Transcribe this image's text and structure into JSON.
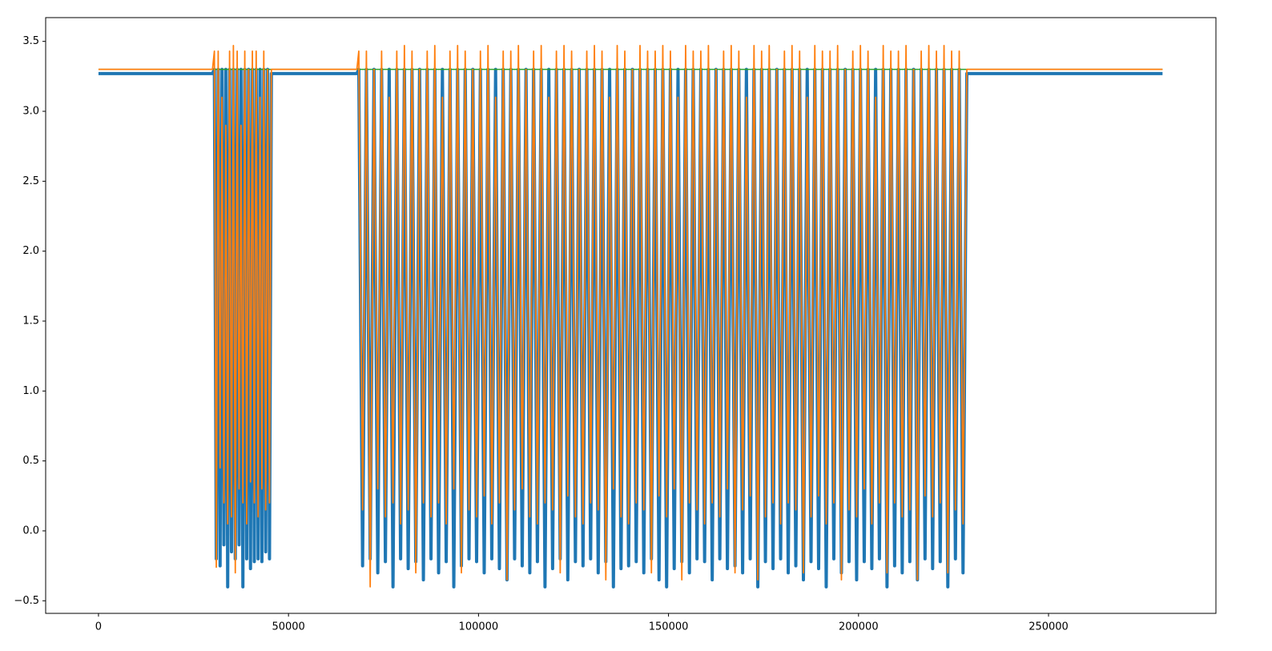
{
  "chart_data": {
    "type": "line",
    "xlim": [
      -13900,
      294050
    ],
    "ylim": [
      -0.59,
      3.67
    ],
    "xticks": [
      0,
      50000,
      100000,
      150000,
      200000,
      250000
    ],
    "yticks": [
      {
        "value": -0.5,
        "label": "−0.5"
      },
      {
        "value": 0,
        "label": "0.0"
      },
      0.5,
      {
        "value": 1,
        "label": "1.0"
      },
      1.5,
      {
        "value": 2,
        "label": "2.0"
      },
      2.5,
      {
        "value": 3,
        "label": "3.0"
      },
      3.5
    ],
    "x": [
      0,
      30000,
      30500,
      31000,
      31500,
      32000,
      32500,
      33000,
      33500,
      34000,
      34500,
      35000,
      35500,
      36000,
      36500,
      37000,
      37500,
      38000,
      38500,
      39000,
      39500,
      40000,
      40500,
      41000,
      41500,
      42000,
      42500,
      43000,
      43500,
      44000,
      44500,
      45000,
      45500,
      68000,
      68500,
      69500,
      70500,
      71500,
      72500,
      73500,
      74500,
      75500,
      76500,
      77500,
      78500,
      79500,
      80500,
      81500,
      82500,
      83500,
      84500,
      85500,
      86500,
      87500,
      88500,
      89500,
      90500,
      91500,
      92500,
      93500,
      94500,
      95500,
      96500,
      97500,
      98500,
      99500,
      100500,
      101500,
      102500,
      103500,
      104500,
      105500,
      106500,
      107500,
      108500,
      109500,
      110500,
      111500,
      112500,
      113500,
      114500,
      115500,
      116500,
      117500,
      118500,
      119500,
      120500,
      121500,
      122500,
      123500,
      124500,
      125500,
      126500,
      127500,
      128500,
      129500,
      130500,
      131500,
      132500,
      133500,
      134500,
      135500,
      136500,
      137500,
      138500,
      139500,
      140500,
      141500,
      142500,
      143500,
      144500,
      145500,
      146500,
      147500,
      148500,
      149500,
      150500,
      151500,
      152500,
      153500,
      154500,
      155500,
      156500,
      157500,
      158500,
      159500,
      160500,
      161500,
      162500,
      163500,
      164500,
      165500,
      166500,
      167500,
      168500,
      169500,
      170500,
      171500,
      172500,
      173500,
      174500,
      175500,
      176500,
      177500,
      178500,
      179500,
      180500,
      181500,
      182500,
      183500,
      184500,
      185500,
      186500,
      187500,
      188500,
      189500,
      190500,
      191500,
      192500,
      193500,
      194500,
      195500,
      196500,
      197500,
      198500,
      199500,
      200500,
      201500,
      202500,
      203500,
      204500,
      205500,
      206500,
      207500,
      208500,
      209500,
      210500,
      211500,
      212500,
      213500,
      214500,
      215500,
      216500,
      217500,
      218500,
      219500,
      220500,
      221500,
      222500,
      223500,
      224500,
      225500,
      226500,
      227500,
      228500,
      280000
    ],
    "series": [
      {
        "color": "#1f77b4",
        "values": [
          3.27,
          3.27,
          3.3,
          -0.2,
          3.3,
          -0.25,
          3.3,
          -0.1,
          3.3,
          -0.4,
          3.3,
          -0.15,
          3.3,
          -0.2,
          3.3,
          -0.1,
          3.3,
          -0.4,
          3.3,
          -0.2,
          3.3,
          -0.27,
          3.3,
          -0.22,
          3.3,
          -0.2,
          3.3,
          -0.22,
          3.3,
          -0.15,
          3.3,
          -0.2,
          3.27,
          3.27,
          3.3,
          -0.25,
          3.3,
          -0.2,
          3.3,
          -0.3,
          3.3,
          -0.22,
          3.3,
          -0.4,
          3.3,
          -0.2,
          3.3,
          -0.27,
          3.3,
          -0.22,
          3.3,
          -0.35,
          3.3,
          -0.2,
          3.3,
          -0.3,
          3.3,
          -0.22,
          3.3,
          -0.4,
          3.3,
          -0.25,
          3.3,
          -0.2,
          3.3,
          -0.22,
          3.3,
          -0.3,
          3.3,
          -0.2,
          3.3,
          -0.27,
          3.3,
          -0.35,
          3.3,
          -0.2,
          3.3,
          -0.25,
          3.3,
          -0.3,
          3.3,
          -0.22,
          3.3,
          -0.4,
          3.3,
          -0.27,
          3.3,
          -0.2,
          3.3,
          -0.35,
          3.3,
          -0.22,
          3.3,
          -0.25,
          3.3,
          -0.2,
          3.3,
          -0.3,
          3.3,
          -0.22,
          3.3,
          -0.4,
          3.3,
          -0.27,
          3.3,
          -0.25,
          3.3,
          -0.22,
          3.3,
          -0.3,
          3.3,
          -0.2,
          3.3,
          -0.35,
          3.3,
          -0.4,
          3.3,
          -0.27,
          3.3,
          -0.22,
          3.3,
          -0.3,
          3.3,
          -0.2,
          3.3,
          -0.22,
          3.3,
          -0.35,
          3.3,
          -0.2,
          3.3,
          -0.27,
          3.3,
          -0.25,
          3.3,
          -0.3,
          3.3,
          -0.2,
          3.3,
          -0.4,
          3.3,
          -0.22,
          3.3,
          -0.27,
          3.3,
          -0.2,
          3.3,
          -0.3,
          3.3,
          -0.25,
          3.3,
          -0.35,
          3.3,
          -0.22,
          3.3,
          -0.27,
          3.3,
          -0.4,
          3.3,
          -0.2,
          3.3,
          -0.3,
          3.3,
          -0.22,
          3.3,
          -0.35,
          3.3,
          -0.22,
          3.3,
          -0.27,
          3.3,
          -0.2,
          3.3,
          -0.4,
          3.3,
          -0.25,
          3.3,
          -0.3,
          3.3,
          -0.22,
          3.3,
          -0.35,
          3.3,
          -0.2,
          3.3,
          -0.27,
          3.3,
          -0.22,
          3.3,
          -0.4,
          3.3,
          -0.2,
          3.3,
          -0.3,
          3.27,
          3.27
        ]
      },
      {
        "color": "#2ca02c",
        "x": [
          0,
          280000
        ],
        "values": [
          3.3,
          3.3
        ]
      },
      {
        "color": "#ff7f0e",
        "values": [
          3.3,
          3.3,
          3.43,
          -0.26,
          3.43,
          0.45,
          3.1,
          0.2,
          2.9,
          0.05,
          3.43,
          0.1,
          3.47,
          -0.3,
          3.43,
          0.3,
          2.9,
          0.2,
          3.43,
          0.05,
          3.3,
          0.35,
          3.43,
          0.2,
          3.43,
          0.1,
          3.1,
          0.3,
          3.43,
          0.15,
          3.3,
          0.2,
          3.3,
          3.3,
          3.43,
          0.15,
          3.43,
          -0.4,
          3.3,
          0.3,
          3.43,
          0.1,
          3.1,
          0.2,
          3.43,
          0.05,
          3.47,
          0.15,
          3.43,
          -0.3,
          3.3,
          0.2,
          3.43,
          0.1,
          3.47,
          0.2,
          3.1,
          0.05,
          3.43,
          0.3,
          3.47,
          -0.3,
          3.43,
          0.15,
          3.3,
          0.1,
          3.43,
          0.25,
          3.47,
          0.05,
          3.1,
          0.2,
          3.43,
          -0.35,
          3.43,
          0.15,
          3.47,
          0.3,
          3.3,
          0.1,
          3.43,
          0.05,
          3.47,
          0.2,
          3.1,
          0.15,
          3.43,
          -0.3,
          3.47,
          0.25,
          3.43,
          0.1,
          3.3,
          0.05,
          3.43,
          0.2,
          3.47,
          0.15,
          3.43,
          -0.35,
          3.1,
          0.3,
          3.47,
          0.1,
          3.43,
          0.05,
          3.3,
          0.2,
          3.47,
          0.15,
          3.43,
          -0.3,
          3.43,
          0.25,
          3.47,
          0.1,
          3.43,
          0.3,
          3.1,
          -0.35,
          3.47,
          0.2,
          3.43,
          0.15,
          3.43,
          0.05,
          3.47,
          0.2,
          3.3,
          0.1,
          3.43,
          0.3,
          3.47,
          -0.3,
          3.43,
          0.15,
          3.1,
          0.25,
          3.47,
          -0.35,
          3.43,
          0.1,
          3.47,
          0.2,
          3.3,
          0.05,
          3.43,
          0.2,
          3.47,
          0.15,
          3.43,
          -0.3,
          3.1,
          0.1,
          3.47,
          0.25,
          3.43,
          0.05,
          3.43,
          0.2,
          3.47,
          -0.35,
          3.3,
          0.15,
          3.43,
          0.1,
          3.47,
          0.3,
          3.43,
          0.05,
          3.1,
          0.2,
          3.47,
          -0.3,
          3.43,
          0.2,
          3.43,
          0.1,
          3.47,
          0.15,
          3.3,
          -0.35,
          3.43,
          0.25,
          3.47,
          0.1,
          3.43,
          0.2,
          3.47,
          -0.3,
          3.43,
          0.15,
          3.43,
          0.05,
          3.3,
          3.3
        ]
      }
    ]
  }
}
